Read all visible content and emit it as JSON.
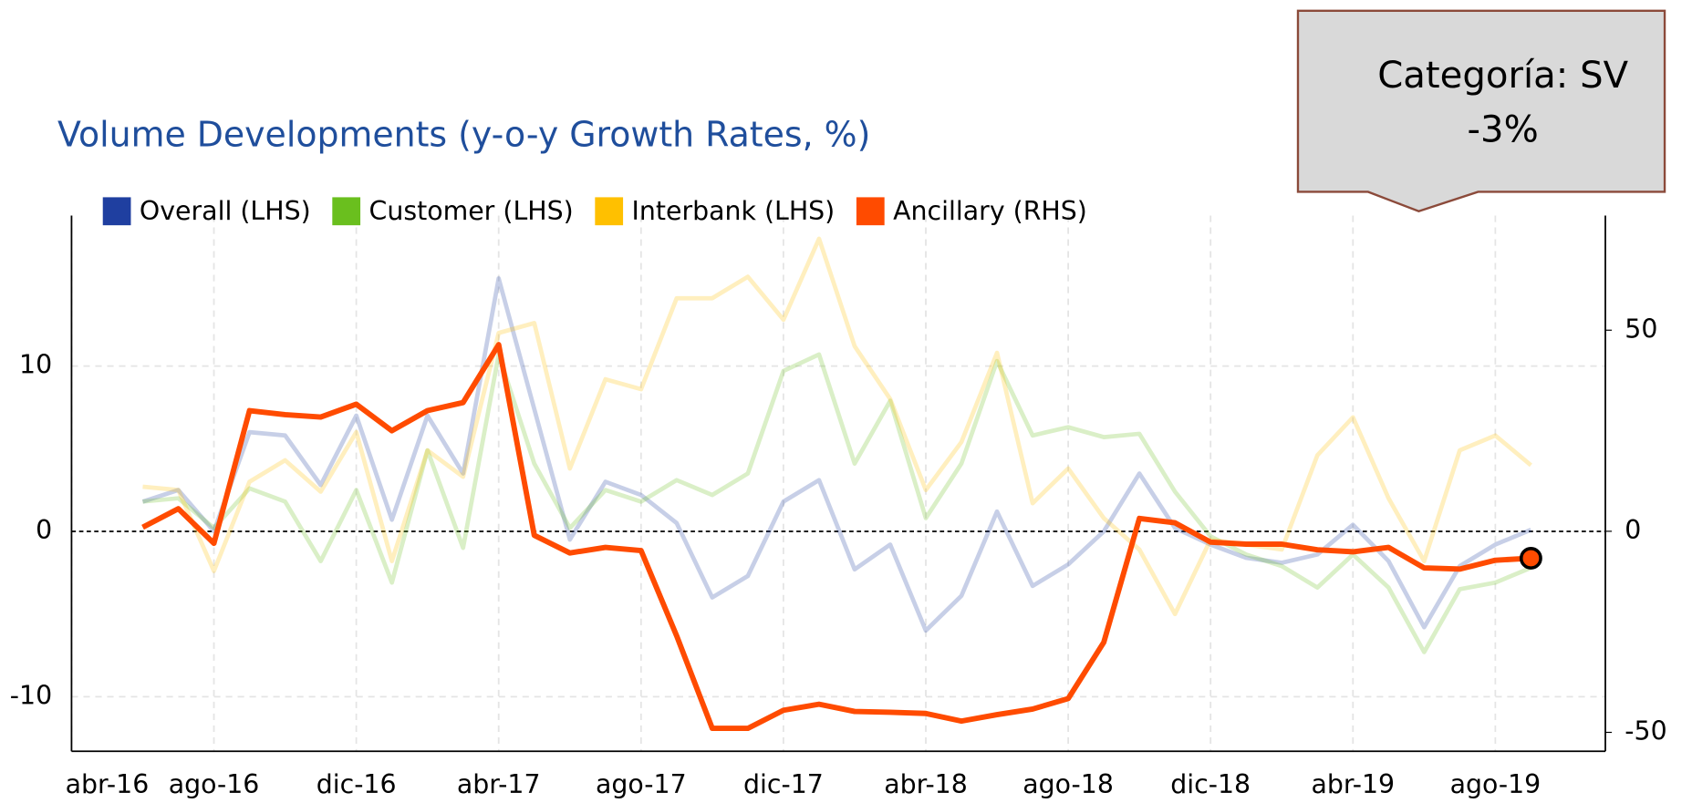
{
  "chart_data": {
    "type": "line",
    "title": "Volume Developments (y-o-y Growth Rates, %)",
    "categories": [
      "abr-16",
      null,
      null,
      null,
      "ago-16",
      null,
      null,
      null,
      "dic-16",
      null,
      null,
      null,
      "abr-17",
      null,
      null,
      null,
      "ago-17",
      null,
      null,
      null,
      "dic-17",
      null,
      null,
      null,
      "abr-18",
      null,
      null,
      null,
      "ago-18",
      null,
      null,
      null,
      "dic-18",
      null,
      null,
      null,
      "abr-19",
      null,
      null,
      null,
      "ago-19",
      null
    ],
    "series": [
      {
        "name": "Overall (LHS)",
        "color": "#1f3fa0",
        "faded": true,
        "values": [
          null,
          null,
          1.8,
          2.5,
          0,
          6,
          5.8,
          2.8,
          7,
          0.7,
          7,
          3.5,
          15.3,
          7.4,
          -0.5,
          3,
          2.2,
          0.5,
          -4,
          -2.7,
          1.8,
          3.1,
          -2.3,
          -0.8,
          -6,
          -3.9,
          1.2,
          -3.3,
          -2,
          0,
          3.5,
          0.2,
          -0.8,
          -1.6,
          -1.9,
          -1.4,
          0.4,
          -1.8,
          -5.8,
          -2.1,
          -0.8,
          0.1
        ]
      },
      {
        "name": "Customer (LHS)",
        "color": "#6abf1e",
        "faded": true,
        "values": [
          null,
          null,
          1.8,
          2,
          0.2,
          2.6,
          1.8,
          -1.8,
          2.5,
          -3.1,
          4.9,
          -1,
          10.7,
          4.1,
          0.2,
          2.5,
          1.8,
          3.1,
          2.2,
          3.5,
          9.7,
          10.7,
          4.1,
          7.9,
          0.8,
          4.1,
          10.3,
          5.8,
          6.3,
          5.7,
          5.9,
          2.4,
          -0.3,
          -1.4,
          -2.1,
          -3.4,
          -1.4,
          -3.4,
          -7.3,
          -3.5,
          -3.1,
          -2.2
        ]
      },
      {
        "name": "Interbank (LHS)",
        "color": "#ffc000",
        "faded": true,
        "values": [
          null,
          null,
          2.7,
          2.5,
          -2.4,
          3,
          4.3,
          2.4,
          6,
          -1.8,
          4.9,
          3.3,
          12,
          12.6,
          3.8,
          9.2,
          8.6,
          14.1,
          14.1,
          15.4,
          12.8,
          17.7,
          11.2,
          8,
          2.5,
          5.4,
          10.8,
          1.7,
          3.8,
          0.8,
          -1.1,
          -5,
          -0.5,
          -0.8,
          -1.1,
          4.6,
          6.9,
          2,
          -1.8,
          4.9,
          5.8,
          4
        ]
      },
      {
        "name": "Ancillary (RHS)",
        "color": "#ff4b00",
        "axis": "y2",
        "values": [
          null,
          null,
          1,
          5.6,
          -3,
          30,
          29,
          28.4,
          31.6,
          25,
          30,
          32,
          46.4,
          -1,
          -5.4,
          -4,
          -4.8,
          -26,
          -49,
          -49,
          -44.5,
          -43,
          -44.8,
          -45,
          -45.3,
          -47.2,
          -45.6,
          -44.2,
          -41.6,
          -27.6,
          3.2,
          2.1,
          -2.7,
          -3.2,
          -3.2,
          -4.6,
          -5.1,
          -4,
          -9.1,
          -9.4,
          -7.2,
          -6.7
        ]
      }
    ],
    "ylim": [
      -13.3,
      19.1
    ],
    "yticks": [
      -10,
      0,
      10
    ],
    "y2lim": [
      -54.7,
      78.5
    ],
    "y2ticks": [
      -50,
      0,
      50
    ],
    "grid": true,
    "legend": "top",
    "tooltip": {
      "title": "Categoría: SV",
      "value": "-3%"
    }
  }
}
